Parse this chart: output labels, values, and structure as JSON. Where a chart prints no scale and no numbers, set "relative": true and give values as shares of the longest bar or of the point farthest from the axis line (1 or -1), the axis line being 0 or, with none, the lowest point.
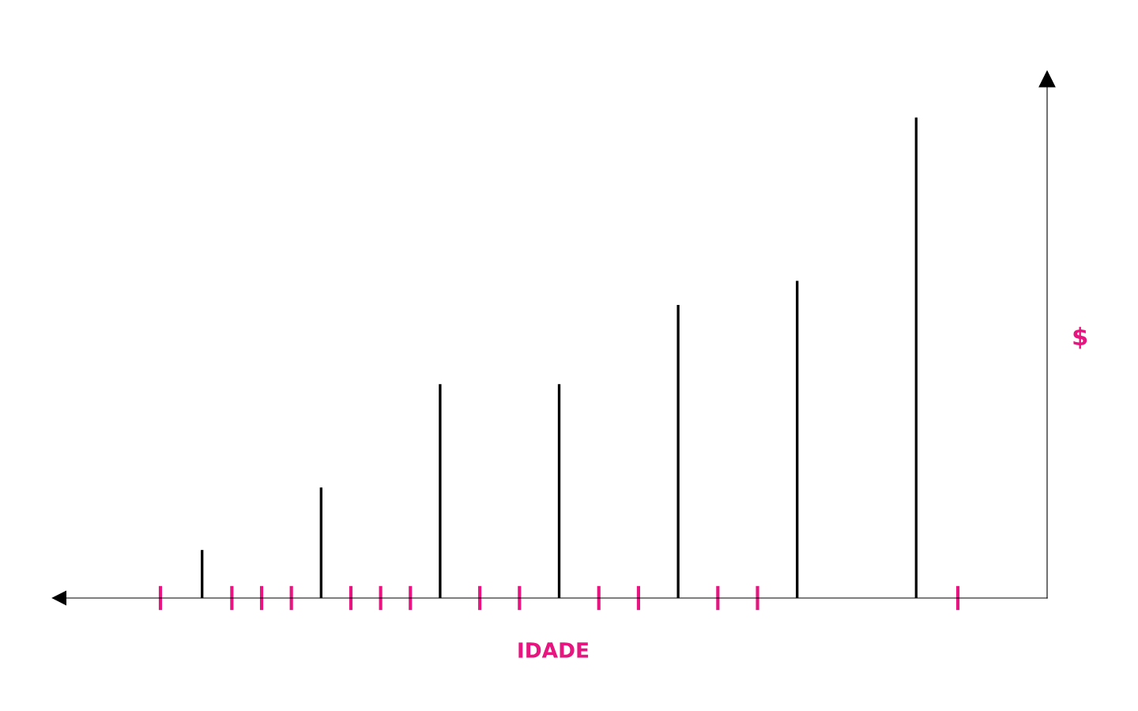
{
  "chart_data": {
    "type": "bar",
    "relative": true,
    "xlabel": "IDADE",
    "ylabel": "$",
    "tick_labels": false,
    "color": "#000000",
    "categories": [
      null,
      null,
      null,
      null,
      null,
      null,
      null
    ],
    "values": [
      0.1,
      0.23,
      0.445,
      0.445,
      0.61,
      0.66,
      1
    ]
  }
}
